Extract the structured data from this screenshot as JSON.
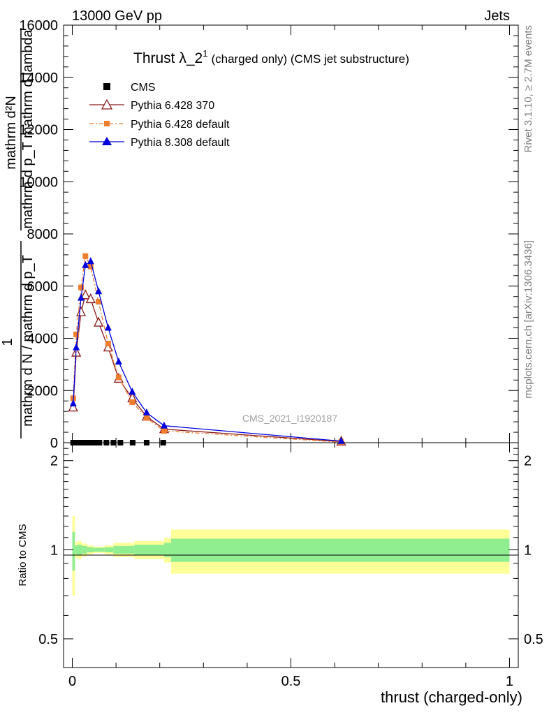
{
  "header": {
    "energy_label": "13000 GeV pp",
    "category_label": "Jets",
    "side_rivet": "Rivet 3.1.10, ≥ 2.7M events",
    "side_mcplots": "mcplots.cern.ch [arXiv:1306.3436]",
    "watermark": "CMS_2021_I1920187"
  },
  "chart_data": {
    "type": "line",
    "title_main": "Thrust λ_2",
    "title_sup": "1",
    "title_suffix": "(charged only) (CMS jet substructure)",
    "ylabel_top": "mathrm d²N",
    "ylabel_top2": "mathrm d p_T mathrm d lambda",
    "ylabel_bottom": "mathrm d N / mathrm d p_T",
    "ylabel_one": "1",
    "ratio_ylabel": "Ratio to CMS",
    "xlabel": "thrust (charged-only)",
    "xlim": [
      -0.02,
      1.02
    ],
    "ylim": [
      0,
      16000
    ],
    "ratio_ylim": [
      0.4,
      2.3
    ],
    "x_ticks": [
      0,
      0.5,
      1
    ],
    "x_tick_labels": [
      "0",
      "0.5",
      "1"
    ],
    "y_ticks": [
      0,
      2000,
      4000,
      6000,
      8000,
      10000,
      12000,
      14000,
      16000
    ],
    "y_tick_labels": [
      "0",
      "2000",
      "4000",
      "6000",
      "8000",
      "10000",
      "12000",
      "14000",
      "16000"
    ],
    "ratio_y_ticks": [
      0.5,
      1,
      2
    ],
    "ratio_y_tick_labels": [
      "0.5",
      "1",
      "2"
    ],
    "series": [
      {
        "name": "CMS",
        "color": "#000000",
        "marker": "square",
        "x": [
          0.002,
          0.01,
          0.018,
          0.026,
          0.034,
          0.042,
          0.05,
          0.062,
          0.078,
          0.094,
          0.11,
          0.138,
          0.17,
          0.208
        ],
        "y": [
          0,
          0,
          0,
          0,
          0,
          0,
          0,
          0,
          0,
          0,
          0,
          0,
          0,
          0
        ]
      },
      {
        "name": "Pythia 6.428 370",
        "color": "#8b1a1a",
        "marker": "triangle-open",
        "x": [
          0.002,
          0.009,
          0.02,
          0.03,
          0.042,
          0.06,
          0.082,
          0.106,
          0.137,
          0.17,
          0.21,
          0.615
        ],
        "y": [
          1350,
          3450,
          5000,
          5650,
          5500,
          4600,
          3650,
          2450,
          1700,
          1000,
          520,
          40
        ]
      },
      {
        "name": "Pythia 6.428 default",
        "color": "#ee7d2e",
        "marker": "square-small",
        "x": [
          0.002,
          0.009,
          0.02,
          0.03,
          0.042,
          0.06,
          0.082,
          0.106,
          0.137,
          0.17,
          0.21,
          0.615
        ],
        "y": [
          1700,
          4150,
          5950,
          7150,
          6750,
          5400,
          3800,
          2500,
          1550,
          950,
          450,
          20
        ]
      },
      {
        "name": "Pythia 8.308 default",
        "color": "#0000dd",
        "marker": "triangle",
        "x": [
          0.002,
          0.009,
          0.02,
          0.03,
          0.042,
          0.06,
          0.082,
          0.106,
          0.137,
          0.17,
          0.21,
          0.615
        ],
        "y": [
          1500,
          3650,
          5550,
          6800,
          6950,
          5800,
          4400,
          3100,
          1950,
          1150,
          650,
          60
        ]
      }
    ],
    "ratio_bands": {
      "edges": [
        0.0,
        0.006,
        0.012,
        0.022,
        0.034,
        0.048,
        0.074,
        0.094,
        0.142,
        0.21,
        0.226,
        1.0
      ],
      "yellow_half": [
        0.3,
        0.06,
        0.07,
        0.05,
        0.035,
        0.025,
        0.035,
        0.055,
        0.07,
        0.095,
        0.17
      ],
      "green_half": [
        0.15,
        0.035,
        0.04,
        0.03,
        0.02,
        0.015,
        0.02,
        0.03,
        0.04,
        0.055,
        0.09
      ]
    }
  }
}
